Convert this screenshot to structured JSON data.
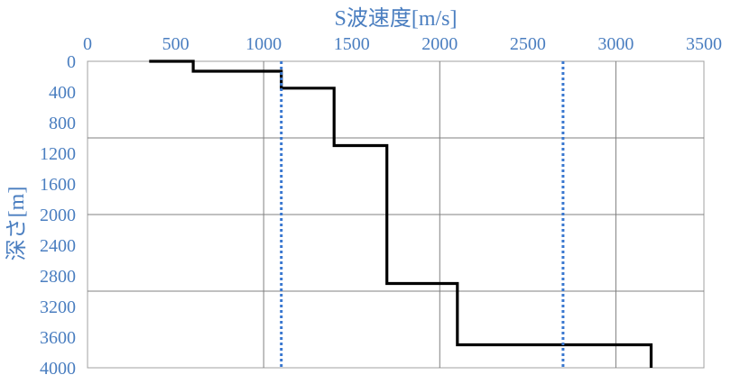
{
  "chart_data": {
    "type": "line",
    "title": "",
    "xlabel": "S波速度[m/s]",
    "ylabel": "深さ[m]",
    "x_axis_position": "top",
    "y_axis_inverted": true,
    "xlim": [
      0,
      3500
    ],
    "ylim": [
      0,
      4000
    ],
    "x_ticks": [
      0,
      500,
      1000,
      1500,
      2000,
      2500,
      3000,
      3500
    ],
    "x_tick_labels": [
      "0",
      "500",
      "1000",
      "1500",
      "2000",
      "2500",
      "3000",
      "3500"
    ],
    "y_ticks": [
      0,
      400,
      800,
      1200,
      1600,
      2000,
      2400,
      2800,
      3200,
      3600,
      4000
    ],
    "y_tick_labels": [
      "0",
      "400",
      "800",
      "1200",
      "1600",
      "2000",
      "2400",
      "2800",
      "3200",
      "3600",
      "4000"
    ],
    "x_gridlines": [
      1000,
      2000,
      3000
    ],
    "y_gridlines": [
      1000,
      2000,
      3000
    ],
    "series": [
      {
        "line_style": "solid",
        "color": "#000000",
        "points": [
          {
            "x": 350,
            "y": 0
          },
          {
            "x": 600,
            "y": 0
          },
          {
            "x": 600,
            "y": 130
          },
          {
            "x": 1100,
            "y": 130
          },
          {
            "x": 1100,
            "y": 350
          },
          {
            "x": 1400,
            "y": 350
          },
          {
            "x": 1400,
            "y": 1100
          },
          {
            "x": 1700,
            "y": 1100
          },
          {
            "x": 1700,
            "y": 2900
          },
          {
            "x": 2100,
            "y": 2900
          },
          {
            "x": 2100,
            "y": 3700
          },
          {
            "x": 3200,
            "y": 3700
          },
          {
            "x": 3200,
            "y": 4000
          }
        ]
      },
      {
        "line_style": "dotted",
        "color": "#3a78d0",
        "points": [
          {
            "x": 1100,
            "y": 0
          },
          {
            "x": 1100,
            "y": 4000
          }
        ]
      },
      {
        "line_style": "dotted",
        "color": "#3a78d0",
        "points": [
          {
            "x": 2700,
            "y": 0
          },
          {
            "x": 2700,
            "y": 4000
          }
        ]
      }
    ],
    "colors": {
      "text": "#4a7ec0",
      "grid": "#808080",
      "step_line": "#000000",
      "reference_line": "#3a78d0"
    }
  }
}
